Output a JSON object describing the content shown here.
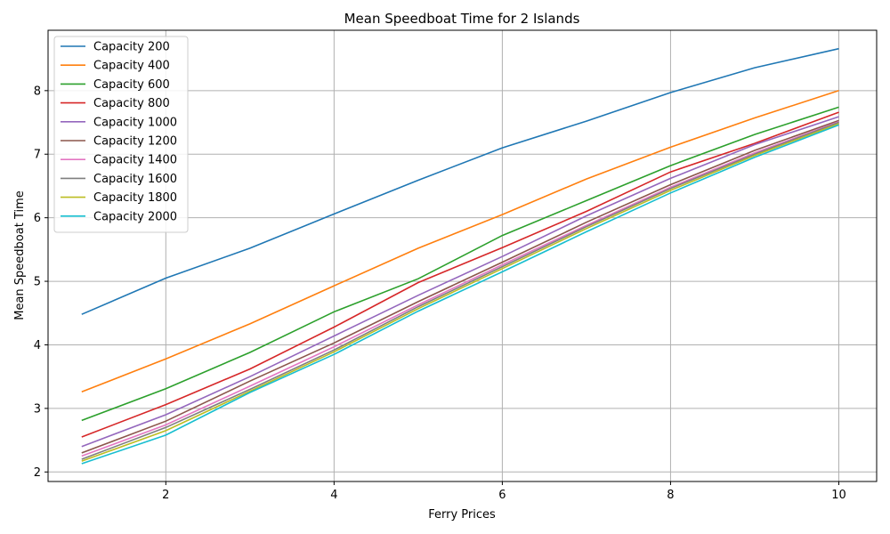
{
  "chart_data": {
    "type": "line",
    "title": "Mean Speedboat Time for 2 Islands",
    "xlabel": "Ferry Prices",
    "ylabel": "Mean Speedboat Time",
    "xlim": [
      0.6,
      10.45
    ],
    "ylim": [
      1.85,
      8.95
    ],
    "xticks": [
      2,
      4,
      6,
      8,
      10
    ],
    "yticks": [
      2,
      3,
      4,
      5,
      6,
      7,
      8
    ],
    "grid": true,
    "legend_position": "top-left",
    "x": [
      1,
      2,
      3,
      4,
      5,
      6,
      7,
      8,
      9,
      10
    ],
    "series": [
      {
        "name": "Capacity 200",
        "color": "#1f77b4",
        "values": [
          4.48,
          5.05,
          5.52,
          6.06,
          6.59,
          7.1,
          7.52,
          7.97,
          8.36,
          8.66
        ]
      },
      {
        "name": "Capacity 400",
        "color": "#ff7f0e",
        "values": [
          3.26,
          3.78,
          4.33,
          4.93,
          5.52,
          6.05,
          6.61,
          7.11,
          7.57,
          8.0
        ]
      },
      {
        "name": "Capacity 600",
        "color": "#2ca02c",
        "values": [
          2.81,
          3.31,
          3.88,
          4.52,
          5.04,
          5.72,
          6.27,
          6.82,
          7.31,
          7.74
        ]
      },
      {
        "name": "Capacity 800",
        "color": "#d62728",
        "values": [
          2.55,
          3.06,
          3.62,
          4.28,
          4.98,
          5.53,
          6.1,
          6.72,
          7.17,
          7.66
        ]
      },
      {
        "name": "Capacity 1000",
        "color": "#9467bd",
        "values": [
          2.4,
          2.9,
          3.5,
          4.14,
          4.78,
          5.39,
          6.03,
          6.62,
          7.15,
          7.59
        ]
      },
      {
        "name": "Capacity 1200",
        "color": "#8c564b",
        "values": [
          2.3,
          2.8,
          3.43,
          4.03,
          4.68,
          5.3,
          5.93,
          6.52,
          7.06,
          7.53
        ]
      },
      {
        "name": "Capacity 1400",
        "color": "#e377c2",
        "values": [
          2.25,
          2.74,
          3.35,
          3.97,
          4.63,
          5.26,
          5.88,
          6.48,
          7.02,
          7.51
        ]
      },
      {
        "name": "Capacity 1600",
        "color": "#7f7f7f",
        "values": [
          2.2,
          2.7,
          3.3,
          3.92,
          4.6,
          5.23,
          5.86,
          6.46,
          7.0,
          7.5
        ]
      },
      {
        "name": "Capacity 1800",
        "color": "#bcbd22",
        "values": [
          2.17,
          2.65,
          3.27,
          3.89,
          4.57,
          5.2,
          5.83,
          6.43,
          6.98,
          7.48
        ]
      },
      {
        "name": "Capacity 2000",
        "color": "#17becf",
        "values": [
          2.13,
          2.58,
          3.25,
          3.85,
          4.53,
          5.15,
          5.78,
          6.39,
          6.95,
          7.46
        ]
      }
    ]
  }
}
